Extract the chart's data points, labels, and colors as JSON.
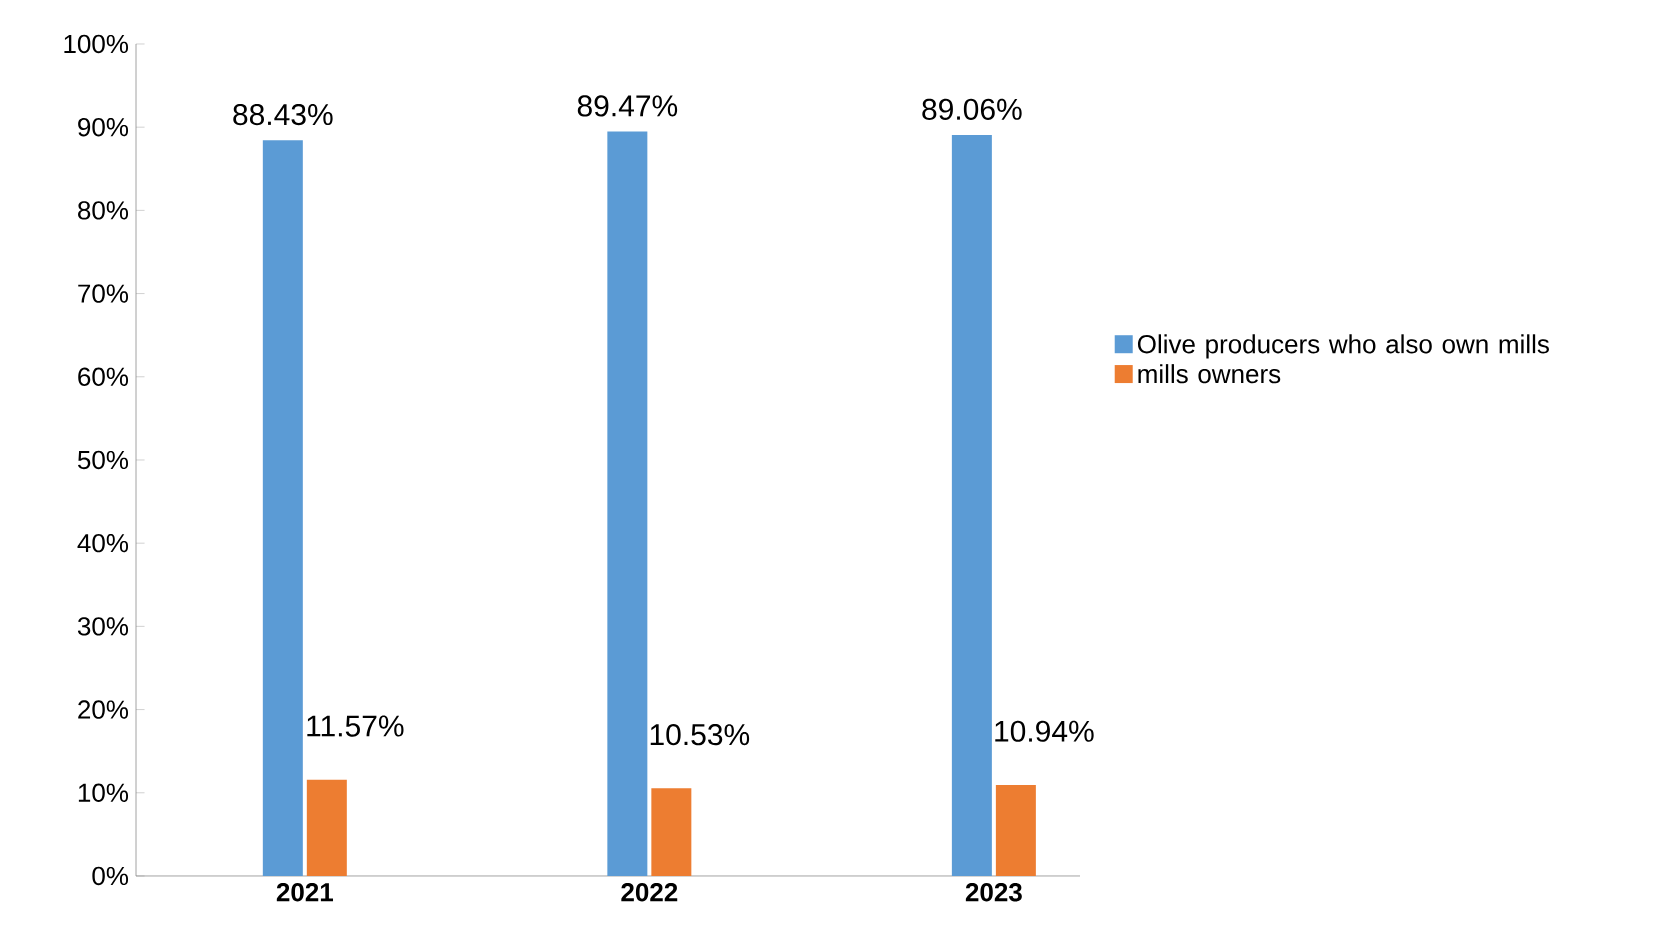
{
  "chart_data": {
    "type": "bar",
    "categories": [
      "2021",
      "2022",
      "2023"
    ],
    "series": [
      {
        "name": "Olive producers who also own mills",
        "color": "#5b9bd5",
        "values": [
          88.43,
          89.47,
          89.06
        ],
        "value_labels": [
          "88.43%",
          "89.47%",
          "89.06%"
        ]
      },
      {
        "name": "mills owners",
        "color": "#ed7d31",
        "values": [
          11.57,
          10.53,
          10.94
        ],
        "value_labels": [
          "11.57%",
          "10.53%",
          "10.94%"
        ]
      }
    ],
    "ylim": [
      0,
      100
    ],
    "yticks": [
      {
        "value": 0,
        "label": "0%"
      },
      {
        "value": 10,
        "label": "10%"
      },
      {
        "value": 20,
        "label": "20%"
      },
      {
        "value": 30,
        "label": "30%"
      },
      {
        "value": 40,
        "label": "40%"
      },
      {
        "value": 50,
        "label": "50%"
      },
      {
        "value": 60,
        "label": "60%"
      },
      {
        "value": 70,
        "label": "70%"
      },
      {
        "value": 80,
        "label": "80%"
      },
      {
        "value": 90,
        "label": "90%"
      },
      {
        "value": 100,
        "label": "100%"
      }
    ],
    "grid": false,
    "legend": "right"
  }
}
